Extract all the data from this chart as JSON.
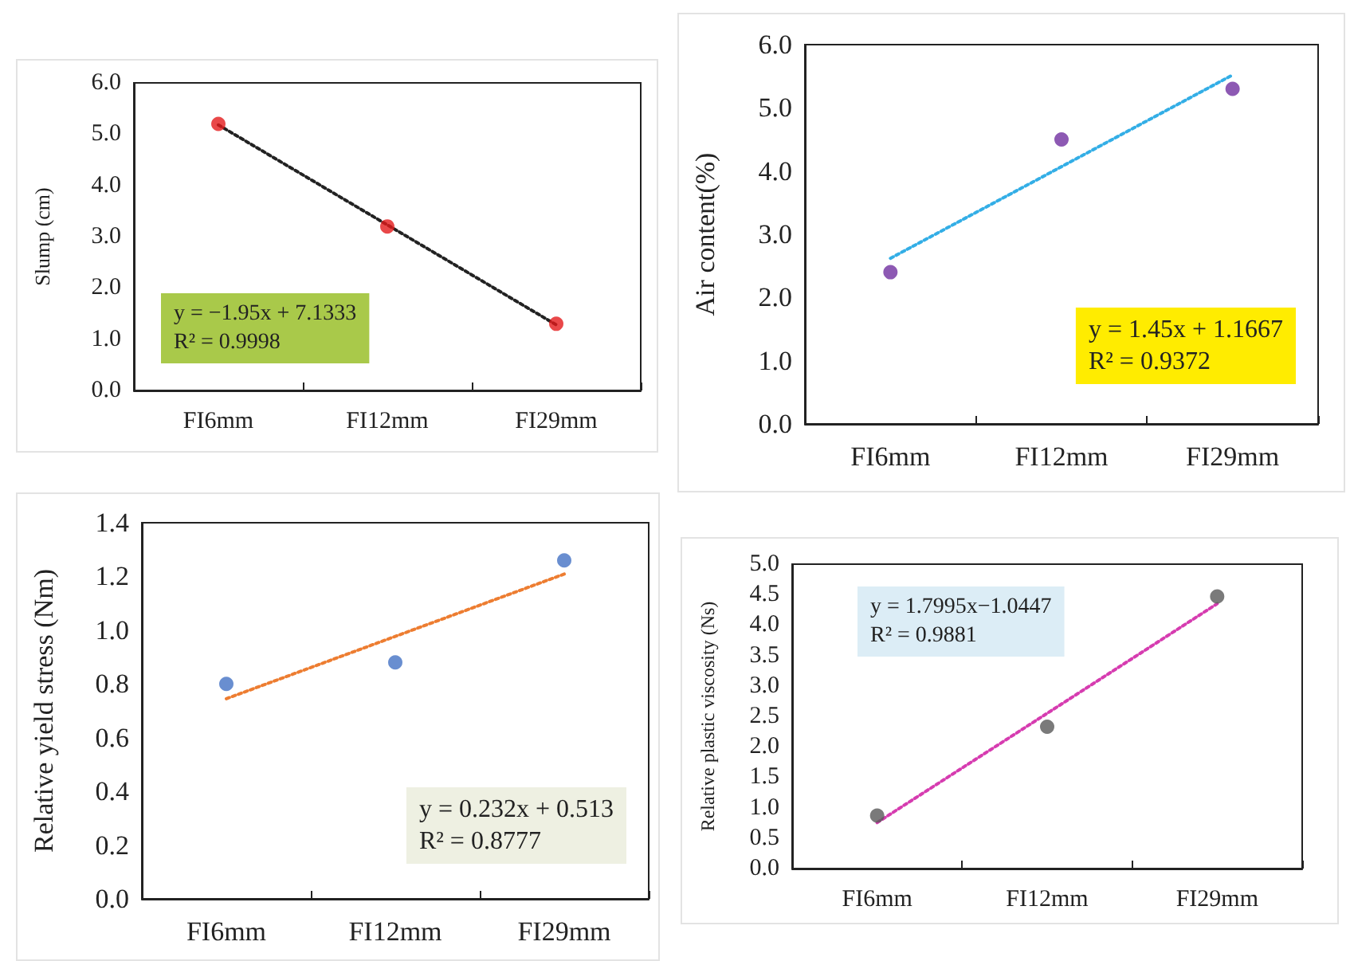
{
  "chart_data": [
    {
      "type": "scatter",
      "ylabel": "Slump (cm)",
      "categories": [
        "FI6mm",
        "FI12mm",
        "FI29mm"
      ],
      "marker": "circle",
      "ylim": [
        0,
        6
      ],
      "yticks": [
        {
          "value": 0,
          "label": "0.0"
        },
        {
          "value": 1,
          "label": "1.0"
        },
        {
          "value": 2,
          "label": "2.0"
        },
        {
          "value": 3,
          "label": "3.0"
        },
        {
          "value": 4,
          "label": "4.0"
        },
        {
          "value": 5,
          "label": "5.0"
        },
        {
          "value": 6,
          "label": "6.0"
        }
      ],
      "series": [
        {
          "color": "#e31a1c",
          "values": [
            5.2,
            3.2,
            1.3
          ]
        },
        {
          "type": "line",
          "marker": "none",
          "line_style": "dotted",
          "color": "#222222",
          "values": [
            5.18,
            3.23,
            1.28
          ]
        }
      ],
      "annotations": [
        "y = −1.95x + 7.1333",
        "R² = 0.9998"
      ]
    },
    {
      "type": "scatter",
      "ylabel": "Air content(%)",
      "categories": [
        "FI6mm",
        "FI12mm",
        "FI29mm"
      ],
      "marker": "circle",
      "ylim": [
        0,
        6
      ],
      "yticks": [
        {
          "value": 0,
          "label": "0.0"
        },
        {
          "value": 1,
          "label": "1.0"
        },
        {
          "value": 2,
          "label": "2.0"
        },
        {
          "value": 3,
          "label": "3.0"
        },
        {
          "value": 4,
          "label": "4.0"
        },
        {
          "value": 5,
          "label": "5.0"
        },
        {
          "value": 6,
          "label": "6.0"
        }
      ],
      "series": [
        {
          "color": "#7030a0",
          "values": [
            2.4,
            4.5,
            5.3
          ]
        },
        {
          "type": "line",
          "marker": "none",
          "line_style": "dotted",
          "color": "#33aee6",
          "values": [
            2.62,
            4.07,
            5.52
          ]
        }
      ],
      "annotations": [
        "y = 1.45x + 1.1667",
        "R² = 0.9372"
      ]
    },
    {
      "type": "scatter",
      "ylabel": "Relative yield stress (Nm)",
      "categories": [
        "FI6mm",
        "FI12mm",
        "FI29mm"
      ],
      "marker": "circle",
      "ylim": [
        0,
        1.4
      ],
      "yticks": [
        {
          "value": 0,
          "label": "0.0"
        },
        {
          "value": 0.2,
          "label": "0.2"
        },
        {
          "value": 0.4,
          "label": "0.4"
        },
        {
          "value": 0.6,
          "label": "0.6"
        },
        {
          "value": 0.8,
          "label": "0.8"
        },
        {
          "value": 1,
          "label": "1.0"
        },
        {
          "value": 1.2,
          "label": "1.2"
        },
        {
          "value": 1.4,
          "label": "1.4"
        }
      ],
      "series": [
        {
          "color": "#4472c4",
          "values": [
            0.8,
            0.88,
            1.26
          ]
        },
        {
          "type": "line",
          "marker": "none",
          "line_style": "dotted",
          "color": "#ed7d31",
          "values": [
            0.745,
            0.977,
            1.209
          ]
        }
      ],
      "annotations": [
        "y = 0.232x + 0.513",
        "R² = 0.8777"
      ]
    },
    {
      "type": "scatter",
      "ylabel": "Relative plastic viscosity (Ns)",
      "categories": [
        "FI6mm",
        "FI12mm",
        "FI29mm"
      ],
      "marker": "circle",
      "ylim": [
        0,
        5
      ],
      "yticks": [
        {
          "value": 0,
          "label": "0.0"
        },
        {
          "value": 0.5,
          "label": "0.5"
        },
        {
          "value": 1,
          "label": "1.0"
        },
        {
          "value": 1.5,
          "label": "1.5"
        },
        {
          "value": 2,
          "label": "2.0"
        },
        {
          "value": 2.5,
          "label": "2.5"
        },
        {
          "value": 3,
          "label": "3.0"
        },
        {
          "value": 3.5,
          "label": "3.5"
        },
        {
          "value": 4,
          "label": "4.0"
        },
        {
          "value": 4.5,
          "label": "4.5"
        },
        {
          "value": 5,
          "label": "5.0"
        }
      ],
      "series": [
        {
          "color": "#595959",
          "values": [
            0.87,
            2.33,
            4.47
          ]
        },
        {
          "type": "line",
          "marker": "none",
          "line_style": "dotted",
          "color": "#d63cb0",
          "values": [
            0.755,
            2.55,
            4.35
          ]
        }
      ],
      "annotations": [
        "y = 1.7995x−1.0447",
        "R² = 0.9881"
      ]
    }
  ]
}
